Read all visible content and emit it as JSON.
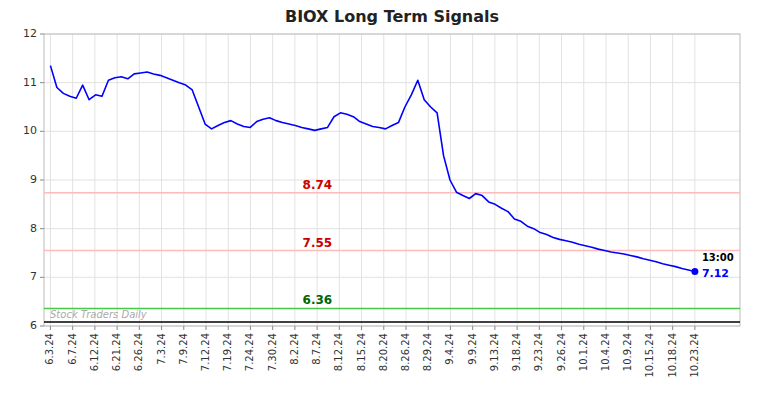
{
  "chart_data": {
    "type": "line",
    "title": "BIOX Long Term Signals",
    "color": "#0000ff",
    "x": [
      0,
      1,
      2,
      3,
      4,
      5,
      6,
      7,
      8,
      9,
      10,
      11,
      12,
      13,
      14,
      15,
      16,
      17,
      18,
      19,
      20,
      21,
      22,
      23,
      24,
      25,
      26,
      27,
      28,
      29,
      30,
      31,
      32,
      33,
      34,
      35,
      36,
      37,
      38,
      39,
      40,
      41,
      42,
      43,
      44,
      45,
      46,
      47,
      48,
      49,
      50,
      51,
      52,
      53,
      54,
      55,
      56,
      57,
      58,
      59,
      60,
      61,
      62,
      63,
      64,
      65,
      66,
      67,
      68,
      69,
      70,
      71,
      72,
      73,
      74,
      75,
      76,
      77,
      78,
      79,
      80,
      81,
      82,
      83,
      84,
      85,
      86,
      87,
      88,
      89,
      90,
      91,
      92,
      93,
      94,
      95,
      96,
      97,
      98,
      99,
      100
    ],
    "values": [
      11.35,
      10.9,
      10.78,
      10.72,
      10.68,
      10.95,
      10.65,
      10.75,
      10.72,
      11.05,
      11.1,
      11.12,
      11.08,
      11.18,
      11.2,
      11.22,
      11.18,
      11.15,
      11.1,
      11.05,
      11.0,
      10.95,
      10.85,
      10.5,
      10.15,
      10.05,
      10.12,
      10.18,
      10.22,
      10.15,
      10.1,
      10.08,
      10.2,
      10.25,
      10.28,
      10.22,
      10.18,
      10.15,
      10.12,
      10.08,
      10.05,
      10.02,
      10.05,
      10.08,
      10.3,
      10.38,
      10.35,
      10.3,
      10.2,
      10.15,
      10.1,
      10.08,
      10.05,
      10.12,
      10.18,
      10.5,
      10.75,
      11.05,
      10.65,
      10.5,
      10.38,
      9.5,
      9.0,
      8.75,
      8.68,
      8.62,
      8.72,
      8.68,
      8.55,
      8.5,
      8.42,
      8.35,
      8.2,
      8.15,
      8.05,
      8.0,
      7.92,
      7.88,
      7.82,
      7.78,
      7.75,
      7.72,
      7.68,
      7.65,
      7.62,
      7.58,
      7.55,
      7.52,
      7.5,
      7.48,
      7.45,
      7.42,
      7.38,
      7.35,
      7.32,
      7.28,
      7.25,
      7.22,
      7.18,
      7.15,
      7.12
    ],
    "xlim": [
      -1,
      107
    ],
    "xticks": [
      {
        "value": 0,
        "label": "6.3.24"
      },
      {
        "value": 3.4482758620689653,
        "label": "6.7.24"
      },
      {
        "value": 6.896551724137931,
        "label": "6.12.24"
      },
      {
        "value": 10.344827586206897,
        "label": "6.21.24"
      },
      {
        "value": 13.793103448275861,
        "label": "6.26.24"
      },
      {
        "value": 17.24137931034483,
        "label": "7.3.24"
      },
      {
        "value": 20.689655172413794,
        "label": "7.9.24"
      },
      {
        "value": 24.137931034482758,
        "label": "7.12.24"
      },
      {
        "value": 27.586206896551722,
        "label": "7.19.24"
      },
      {
        "value": 31.03448275862069,
        "label": "7.24.24"
      },
      {
        "value": 34.48275862068966,
        "label": "7.30.24"
      },
      {
        "value": 37.93103448275862,
        "label": "8.2.24"
      },
      {
        "value": 41.37931034482759,
        "label": "8.7.24"
      },
      {
        "value": 44.827586206896555,
        "label": "8.12.24"
      },
      {
        "value": 48.275862068965516,
        "label": "8.15.24"
      },
      {
        "value": 51.724137931034484,
        "label": "8.20.24"
      },
      {
        "value": 55.172413793103445,
        "label": "8.26.24"
      },
      {
        "value": 58.62068965517241,
        "label": "8.29.24"
      },
      {
        "value": 62.06896551724138,
        "label": "9.4.24"
      },
      {
        "value": 65.51724137931035,
        "label": "9.9.24"
      },
      {
        "value": 68.96551724137932,
        "label": "9.13.24"
      },
      {
        "value": 72.41379310344827,
        "label": "9.18.24"
      },
      {
        "value": 75.86206896551724,
        "label": "9.23.24"
      },
      {
        "value": 79.3103448275862,
        "label": "9.26.24"
      },
      {
        "value": 82.75862068965517,
        "label": "10.1.24"
      },
      {
        "value": 86.20689655172413,
        "label": "10.4.24"
      },
      {
        "value": 89.65517241379311,
        "label": "10.9.24"
      },
      {
        "value": 93.10344827586206,
        "label": "10.15.24"
      },
      {
        "value": 96.55172413793103,
        "label": "10.18.24"
      },
      {
        "value": 100,
        "label": "10.23.24"
      }
    ],
    "ylim": [
      6,
      12
    ],
    "yticks": [
      6,
      7,
      8,
      9,
      10,
      11,
      12
    ],
    "grid": true,
    "reference_lines": [
      {
        "value": 8.74,
        "color": "#ffbbbb",
        "label_color": "#cc0000"
      },
      {
        "value": 7.55,
        "color": "#ffbbbb",
        "label_color": "#cc0000"
      },
      {
        "value": 6.36,
        "color": "#44cc44",
        "label_color": "#006600"
      },
      {
        "value": 6.08,
        "color": "#000000"
      }
    ],
    "annotations": [
      {
        "text": "13:00",
        "color": "#000000"
      },
      {
        "text": "7.12",
        "color": "#0000ff"
      }
    ],
    "watermark": {
      "text": "Stock Traders Daily",
      "color": "#aaaaaa"
    }
  }
}
